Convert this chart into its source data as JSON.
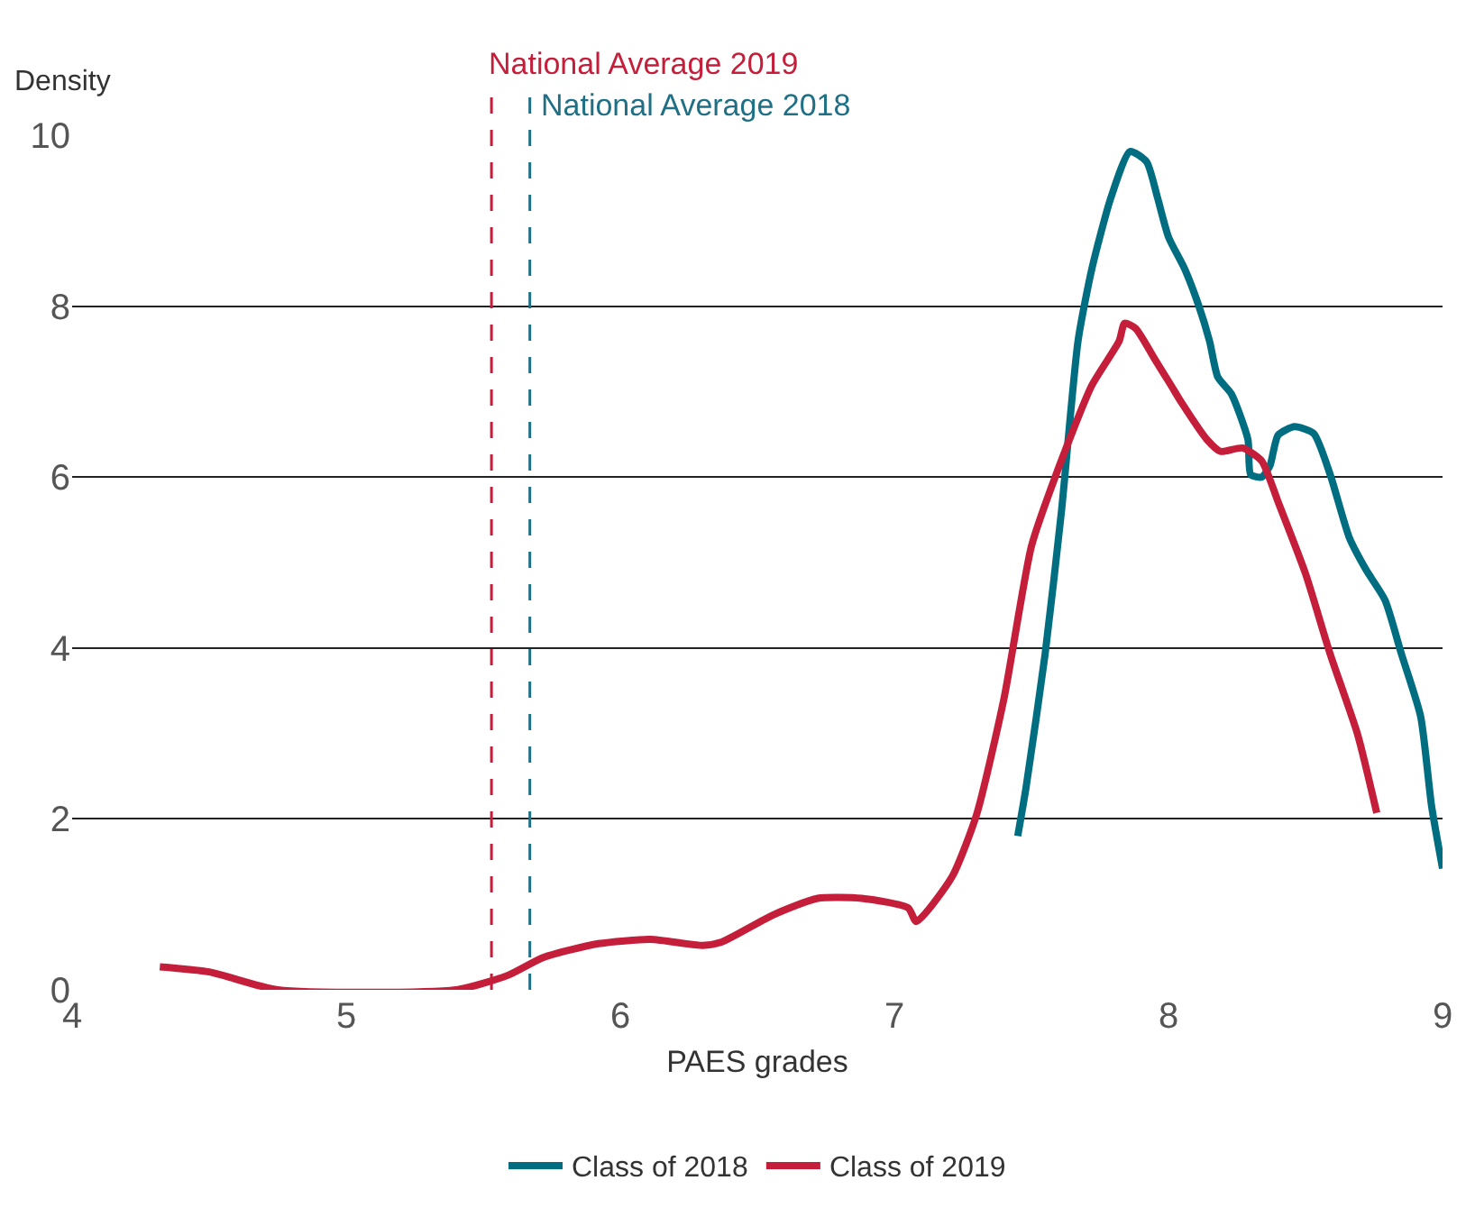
{
  "chart_data": {
    "type": "line",
    "xlabel": "PAES grades",
    "ylabel": "Density",
    "xlim": [
      4,
      9
    ],
    "xticks": [
      4,
      5,
      6,
      7,
      8,
      9
    ],
    "ylim": [
      0,
      10
    ],
    "yticks": [
      0,
      2,
      4,
      6,
      8,
      10
    ],
    "grid": "y",
    "legend": "bottom",
    "line_style": "solid",
    "marker": "none",
    "series": [
      {
        "name": "Class of 2018",
        "color": "#006e80",
        "x": [
          7.45,
          7.48,
          7.55,
          7.61,
          7.67,
          7.72,
          7.79,
          7.86,
          7.92,
          7.96,
          8.0,
          8.06,
          8.11,
          8.15,
          8.18,
          8.23,
          8.29,
          8.3,
          8.34,
          8.37,
          8.4,
          8.46,
          8.53,
          8.59,
          8.66,
          8.72,
          8.79,
          8.85,
          8.92,
          8.96,
          9.0
        ],
        "values": [
          1.8,
          2.36,
          3.93,
          5.61,
          7.59,
          8.43,
          9.27,
          9.81,
          9.69,
          9.27,
          8.81,
          8.43,
          8.01,
          7.59,
          7.17,
          6.97,
          6.44,
          6.03,
          6.0,
          6.13,
          6.49,
          6.59,
          6.51,
          6.03,
          5.29,
          4.92,
          4.56,
          3.93,
          3.2,
          2.15,
          1.42
        ]
      },
      {
        "name": "Class of 2019",
        "color": "#c41e3a",
        "x": [
          4.32,
          4.5,
          4.75,
          5.4,
          5.59,
          5.72,
          5.92,
          6.11,
          6.3,
          6.37,
          6.56,
          6.72,
          6.88,
          7.05,
          7.08,
          7.21,
          7.3,
          7.4,
          7.5,
          7.59,
          7.72,
          7.82,
          7.84,
          7.88,
          7.95,
          8.01,
          8.05,
          8.14,
          8.19,
          8.27,
          8.34,
          8.4,
          8.5,
          8.59,
          8.69,
          8.76
        ],
        "values": [
          0.27,
          0.21,
          0,
          0,
          0.17,
          0.38,
          0.54,
          0.59,
          0.52,
          0.56,
          0.88,
          1.07,
          1.07,
          0.96,
          0.8,
          1.32,
          2.05,
          3.41,
          5.19,
          6.03,
          7.07,
          7.59,
          7.8,
          7.74,
          7.38,
          7.07,
          6.86,
          6.44,
          6.3,
          6.34,
          6.19,
          5.71,
          4.87,
          3.93,
          2.99,
          2.07
        ]
      }
    ],
    "ref_lines": [
      {
        "axis": "x",
        "value": 5.53,
        "label": "National Average 2019",
        "color": "#c41e3a",
        "line_style": "dashed"
      },
      {
        "axis": "x",
        "value": 5.67,
        "label": "National Average 2018",
        "color": "#1f6f85",
        "line_style": "dashed"
      }
    ]
  }
}
